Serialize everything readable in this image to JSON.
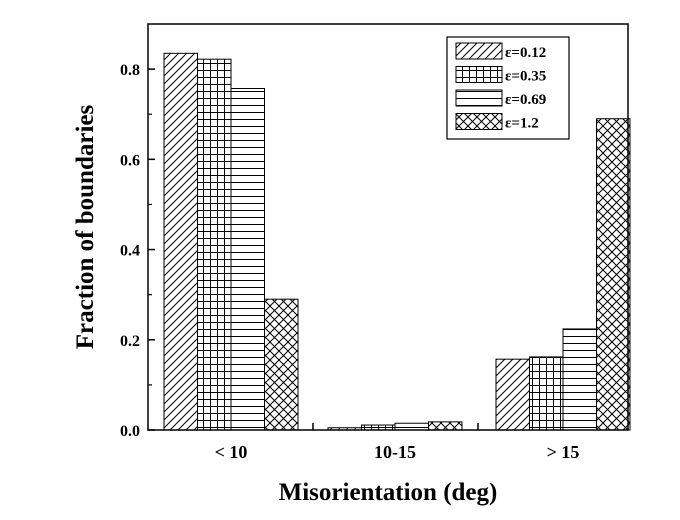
{
  "chart_data": {
    "type": "bar",
    "title": "",
    "xlabel": "Misorientation (deg)",
    "ylabel": "Fraction of boundaries",
    "categories": [
      "< 10",
      "10-15",
      "> 15"
    ],
    "series": [
      {
        "name": "ε=0.12",
        "pattern": "diagonal-hatch",
        "values": [
          0.835,
          0.005,
          0.157
        ]
      },
      {
        "name": "ε=0.35",
        "pattern": "grid-hatch",
        "values": [
          0.822,
          0.011,
          0.162
        ]
      },
      {
        "name": "ε=0.69",
        "pattern": "horizontal-hatch",
        "values": [
          0.757,
          0.015,
          0.224
        ]
      },
      {
        "name": "ε=1.2",
        "pattern": "cross-hatch",
        "values": [
          0.29,
          0.018,
          0.69
        ]
      }
    ],
    "ylim": [
      0,
      0.9
    ],
    "yticks": [
      "0.0",
      "0.2",
      "0.4",
      "0.6",
      "0.8"
    ],
    "grid": false,
    "legend_position": "top-right"
  }
}
